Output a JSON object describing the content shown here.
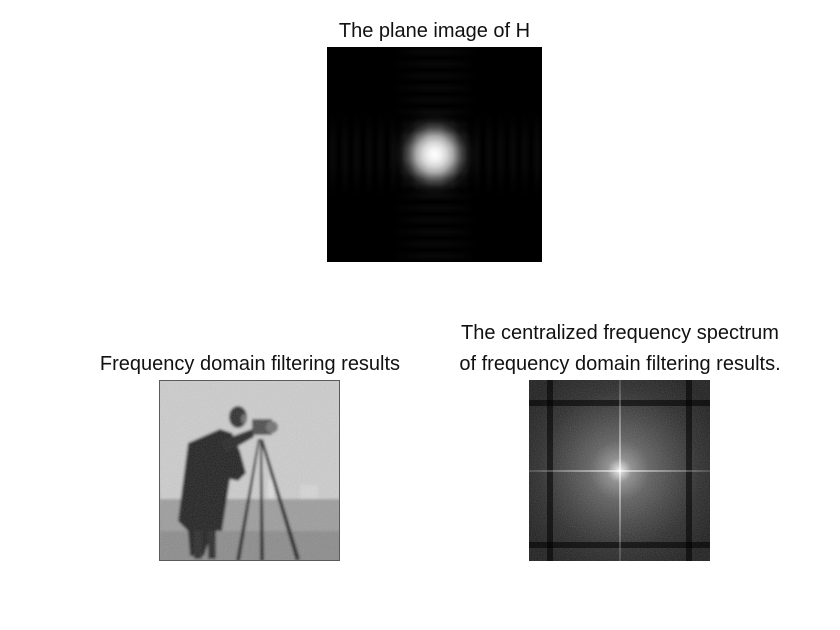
{
  "figure": {
    "background": "#ffffff",
    "text_color": "#111111"
  },
  "panels": {
    "h_plane": {
      "title": "The plane image of H"
    },
    "filtered": {
      "title": "Frequency domain filtering results"
    },
    "spectrum": {
      "title_line1": "The centralized frequency spectrum",
      "title_line2": "of frequency domain filtering results."
    }
  }
}
